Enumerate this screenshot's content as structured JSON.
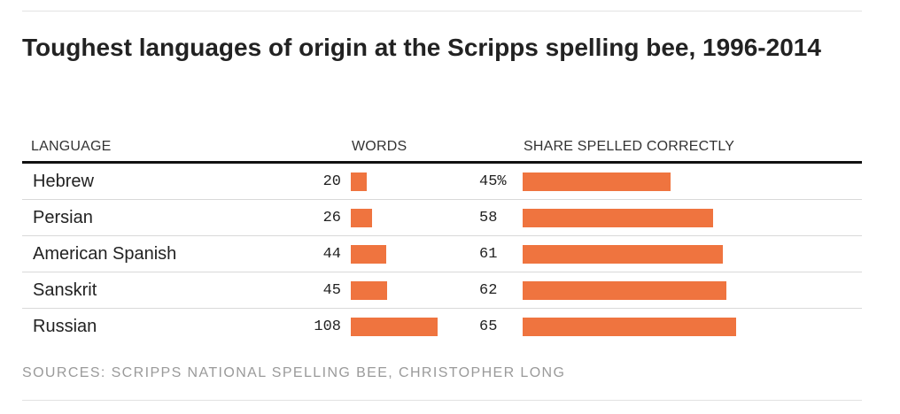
{
  "title": "Toughest languages of origin at the Scripps spelling bee, 1996-2014",
  "headers": {
    "language": "LANGUAGE",
    "words": "WORDS",
    "share": "SHARE SPELLED CORRECTLY"
  },
  "source": "SOURCES: SCRIPPS NATIONAL SPELLING BEE, CHRISTOPHER LONG",
  "colors": {
    "bar": "#ef743f",
    "header_rule": "#111111",
    "row_rule": "#d9d9d9",
    "source_text": "#9a9a9a"
  },
  "chart_data": {
    "type": "table",
    "title": "Toughest languages of origin at the Scripps spelling bee, 1996-2014",
    "columns": [
      "LANGUAGE",
      "WORDS",
      "SHARE SPELLED CORRECTLY"
    ],
    "categories": [
      "Hebrew",
      "Persian",
      "American Spanish",
      "Sanskrit",
      "Russian"
    ],
    "series": [
      {
        "name": "WORDS",
        "values": [
          20,
          26,
          44,
          45,
          108
        ],
        "labels": [
          "20",
          "26",
          "44",
          "45",
          "108"
        ],
        "max": 108
      },
      {
        "name": "SHARE SPELLED CORRECTLY",
        "values": [
          45,
          58,
          61,
          62,
          65
        ],
        "labels": [
          "45%",
          "58",
          "61",
          "62",
          "65"
        ],
        "max": 100
      }
    ]
  }
}
